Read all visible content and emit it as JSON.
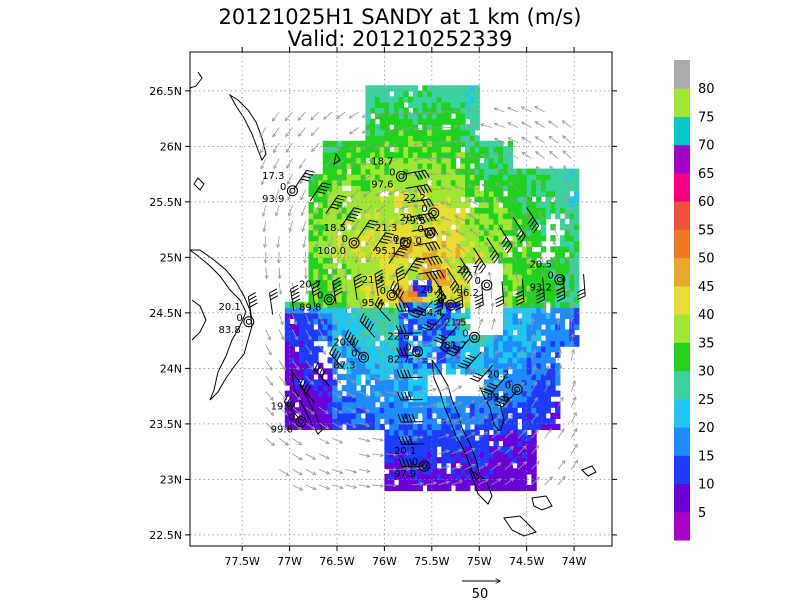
{
  "chart_data": {
    "type": "heatmap",
    "title": "20121025H1 SANDY at 1 km (m/s)",
    "subtitle": "Valid: 201210252339",
    "x_ticks": [
      "77.5W",
      "77W",
      "76.5W",
      "76W",
      "75.5W",
      "75W",
      "74.5W",
      "74W"
    ],
    "y_ticks": [
      "26.5N",
      "26N",
      "25.5N",
      "25N",
      "24.5N",
      "24N",
      "23.5N",
      "23N",
      "22.5N"
    ],
    "xlim": [
      -78.05,
      -73.6
    ],
    "ylim": [
      22.4,
      26.85
    ],
    "grid": true,
    "colorbar": {
      "labels": [
        "5",
        "10",
        "15",
        "20",
        "25",
        "30",
        "35",
        "40",
        "45",
        "50",
        "55",
        "60",
        "65",
        "70",
        "75",
        "80"
      ],
      "colors": [
        "#a800c8",
        "#6a00d8",
        "#1e3cff",
        "#1e8cff",
        "#1ec8f0",
        "#3cd2a0",
        "#1ed21e",
        "#a0e632",
        "#e6dc32",
        "#e6aa28",
        "#f07822",
        "#f0503c",
        "#f00082",
        "#a000c8",
        "#00c8c8",
        "#a0e632",
        "#aaaaaa"
      ]
    },
    "vector_reference": {
      "label": "50"
    },
    "stations": [
      {
        "lon": -77.43,
        "lat": 24.42,
        "labels": [
          "20.1",
          "0",
          "83.8"
        ]
      },
      {
        "lon": -76.97,
        "lat": 25.6,
        "labels": [
          "17.3",
          "0",
          "93.9"
        ]
      },
      {
        "lon": -76.58,
        "lat": 24.62,
        "labels": [
          "20.7",
          "0",
          "89.8"
        ]
      },
      {
        "lon": -76.32,
        "lat": 25.13,
        "labels": [
          "18.5",
          "0",
          "100.0"
        ]
      },
      {
        "lon": -76.22,
        "lat": 24.1,
        "labels": [
          "20.6",
          "0",
          "87.3"
        ]
      },
      {
        "lon": -76.88,
        "lat": 23.52,
        "labels": [
          "19.0",
          "0",
          "99.6"
        ]
      },
      {
        "lon": -75.78,
        "lat": 25.13,
        "labels": [
          "21.3",
          "0",
          "95.1"
        ]
      },
      {
        "lon": -75.82,
        "lat": 25.73,
        "labels": [
          "18.7",
          "0",
          "97.6"
        ]
      },
      {
        "lon": -75.52,
        "lat": 25.22,
        "labels": [
          "20.4",
          "0",
          "100.0"
        ]
      },
      {
        "lon": -75.48,
        "lat": 25.4,
        "labels": [
          "22.2",
          "0",
          "79.5"
        ]
      },
      {
        "lon": -75.92,
        "lat": 24.66,
        "labels": [
          "21.4",
          "0",
          "95.4"
        ]
      },
      {
        "lon": -75.65,
        "lat": 24.15,
        "labels": [
          "22.6",
          "0",
          "82.7"
        ]
      },
      {
        "lon": -75.3,
        "lat": 24.57,
        "labels": [
          "20.7",
          "0",
          "84.4"
        ]
      },
      {
        "lon": -75.05,
        "lat": 24.28,
        "labels": [
          "21.5",
          "0",
          "81.7"
        ]
      },
      {
        "lon": -74.92,
        "lat": 24.75,
        "labels": [
          "20.7",
          "0",
          "96.2"
        ]
      },
      {
        "lon": -74.15,
        "lat": 24.8,
        "labels": [
          "20.5",
          "0",
          "93.2"
        ]
      },
      {
        "lon": -74.6,
        "lat": 23.81,
        "labels": [
          "20.2",
          "0",
          "93.6"
        ]
      },
      {
        "lon": -75.58,
        "lat": 23.12,
        "labels": [
          "20.1",
          "0",
          "97.9"
        ]
      }
    ]
  }
}
